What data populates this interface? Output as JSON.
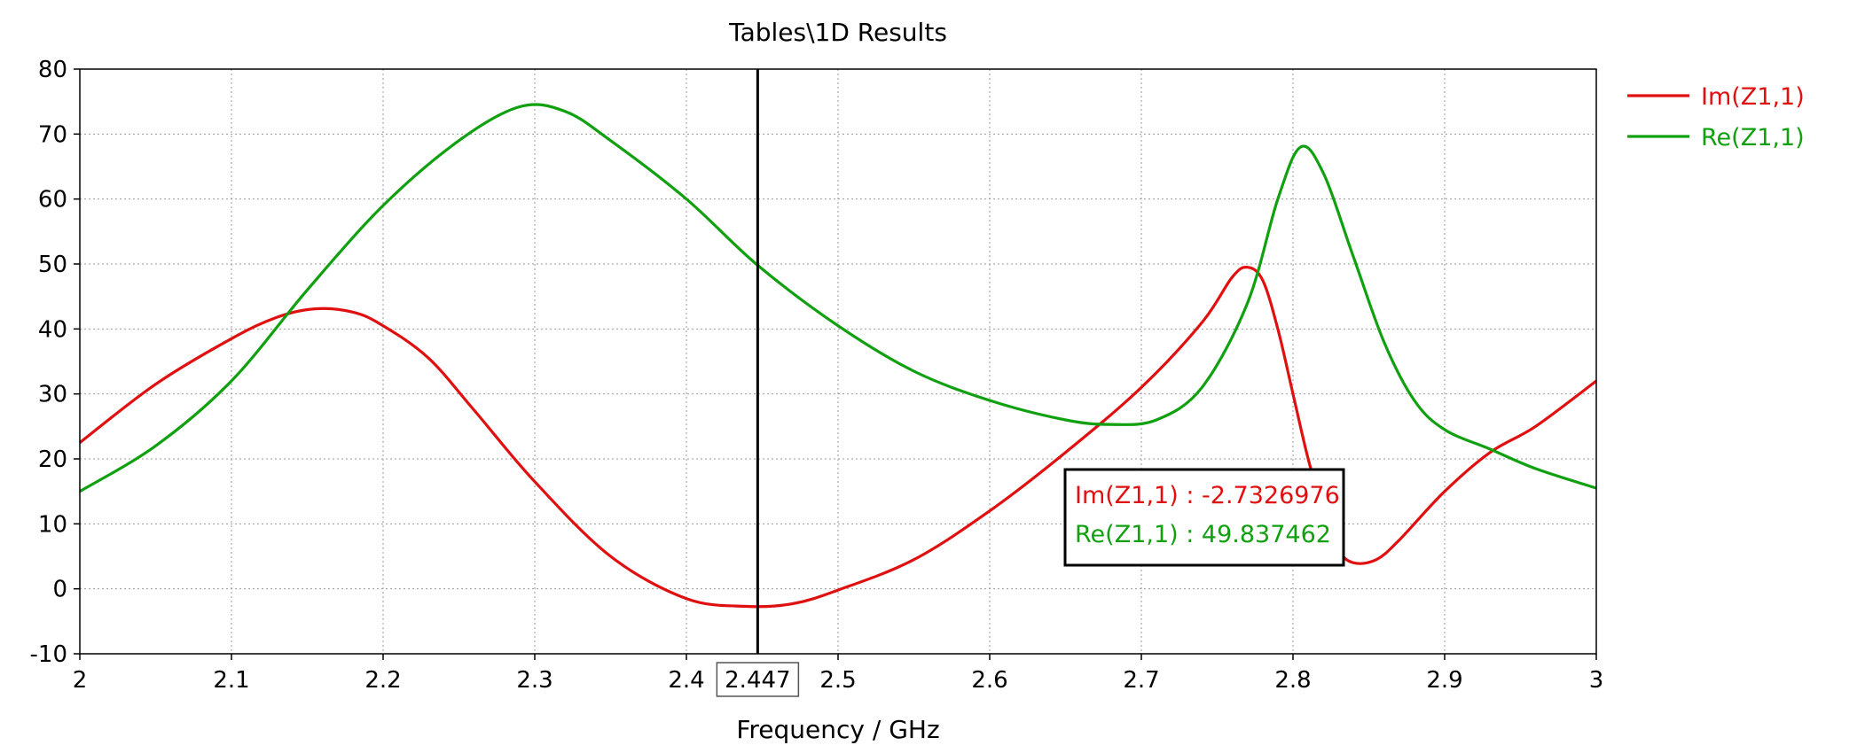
{
  "chart_data": {
    "type": "line",
    "title": "Tables\\1D Results",
    "xlabel": "Frequency / GHz",
    "ylabel": "",
    "xlim": [
      2,
      3
    ],
    "ylim": [
      -10,
      80
    ],
    "x_ticks": [
      "2",
      "2.1",
      "2.2",
      "2.3",
      "2.4",
      "2.5",
      "2.6",
      "2.7",
      "2.8",
      "2.9",
      "3"
    ],
    "y_ticks": [
      "-10",
      "0",
      "10",
      "20",
      "30",
      "40",
      "50",
      "60",
      "70",
      "80"
    ],
    "grid": true,
    "legend_position": "top-right",
    "marker": {
      "x": 2.447,
      "x_label": "2.447",
      "readouts": [
        {
          "text": "Im(Z1,1) : -2.7326976",
          "series": "Im(Z1,1)"
        },
        {
          "text": "Re(Z1,1) : 49.837462",
          "series": "Re(Z1,1)"
        }
      ]
    },
    "series": [
      {
        "name": "Im(Z1,1)",
        "color": "#e01010",
        "points": [
          [
            2.0,
            22.5
          ],
          [
            2.05,
            31.5
          ],
          [
            2.1,
            38.5
          ],
          [
            2.13,
            41.8
          ],
          [
            2.155,
            43.1
          ],
          [
            2.18,
            42.6
          ],
          [
            2.2,
            40.5
          ],
          [
            2.23,
            35.5
          ],
          [
            2.26,
            27.5
          ],
          [
            2.3,
            16.5
          ],
          [
            2.35,
            5.0
          ],
          [
            2.4,
            -1.5
          ],
          [
            2.44,
            -2.7
          ],
          [
            2.47,
            -2.3
          ],
          [
            2.5,
            -0.2
          ],
          [
            2.55,
            4.5
          ],
          [
            2.6,
            12.0
          ],
          [
            2.65,
            21.0
          ],
          [
            2.7,
            31.0
          ],
          [
            2.74,
            41.0
          ],
          [
            2.76,
            48.0
          ],
          [
            2.77,
            49.5
          ],
          [
            2.78,
            47.5
          ],
          [
            2.79,
            40.0
          ],
          [
            2.8,
            30.0
          ],
          [
            2.81,
            20.0
          ],
          [
            2.82,
            12.0
          ],
          [
            2.83,
            6.0
          ],
          [
            2.84,
            4.0
          ],
          [
            2.855,
            4.5
          ],
          [
            2.87,
            7.5
          ],
          [
            2.9,
            15.0
          ],
          [
            2.93,
            21.0
          ],
          [
            2.96,
            25.0
          ],
          [
            3.0,
            32.0
          ]
        ]
      },
      {
        "name": "Re(Z1,1)",
        "color": "#10a010",
        "points": [
          [
            2.0,
            15.0
          ],
          [
            2.05,
            22.0
          ],
          [
            2.1,
            32.0
          ],
          [
            2.15,
            46.0
          ],
          [
            2.2,
            59.0
          ],
          [
            2.25,
            69.0
          ],
          [
            2.29,
            74.2
          ],
          [
            2.32,
            73.5
          ],
          [
            2.35,
            69.0
          ],
          [
            2.4,
            60.0
          ],
          [
            2.447,
            49.8
          ],
          [
            2.5,
            40.5
          ],
          [
            2.55,
            33.5
          ],
          [
            2.6,
            29.0
          ],
          [
            2.65,
            26.0
          ],
          [
            2.68,
            25.3
          ],
          [
            2.71,
            26.0
          ],
          [
            2.74,
            31.0
          ],
          [
            2.77,
            44.0
          ],
          [
            2.79,
            60.0
          ],
          [
            2.805,
            68.0
          ],
          [
            2.82,
            64.0
          ],
          [
            2.84,
            51.0
          ],
          [
            2.86,
            38.0
          ],
          [
            2.88,
            29.0
          ],
          [
            2.9,
            24.5
          ],
          [
            2.93,
            21.5
          ],
          [
            2.96,
            18.5
          ],
          [
            3.0,
            15.5
          ]
        ]
      }
    ]
  }
}
